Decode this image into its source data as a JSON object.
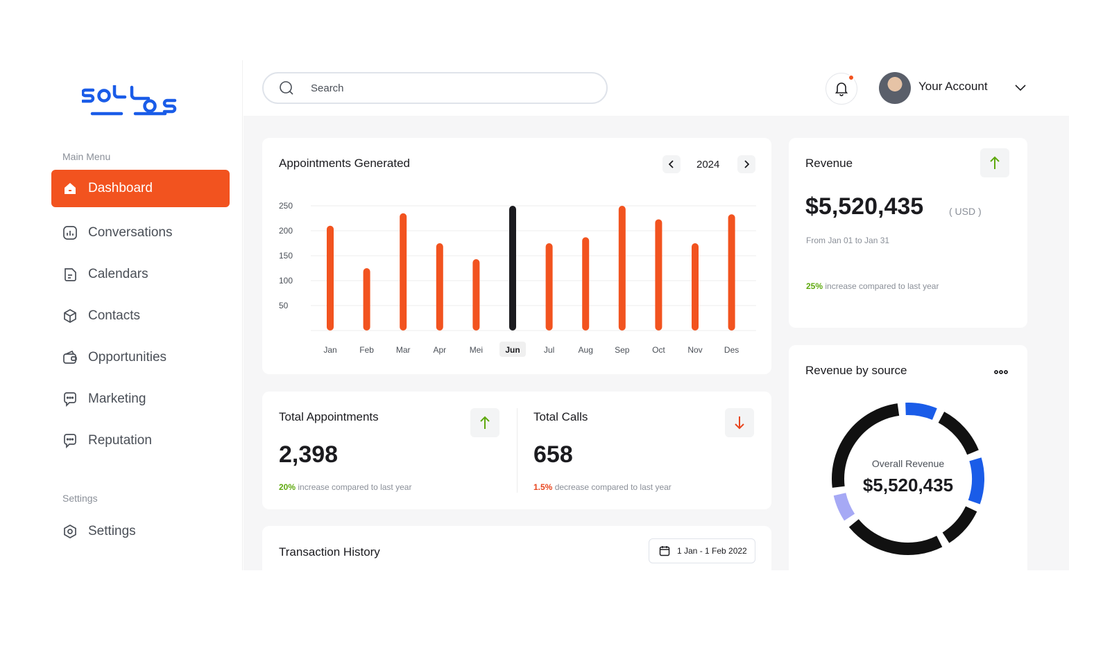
{
  "brand": {
    "logo_text": "solos",
    "color": "#1a5ce8"
  },
  "sidebar": {
    "main_menu_label": "Main Menu",
    "items": [
      {
        "label": "Dashboard",
        "icon": "home-icon",
        "active": true
      },
      {
        "label": "Conversations",
        "icon": "chart-icon"
      },
      {
        "label": "Calendars",
        "icon": "document-icon"
      },
      {
        "label": "Contacts",
        "icon": "box-icon"
      },
      {
        "label": "Opportunities",
        "icon": "wallet-icon"
      },
      {
        "label": "Marketing",
        "icon": "chat-icon"
      },
      {
        "label": "Reputation",
        "icon": "chat-icon"
      }
    ],
    "settings_label": "Settings",
    "settings_item": {
      "label": "Settings",
      "icon": "settings-icon"
    }
  },
  "header": {
    "search_placeholder": "Search",
    "account_label": "Your Account"
  },
  "appointments": {
    "title": "Appointments Generated",
    "year": "2024",
    "chart_data": {
      "type": "bar",
      "categories": [
        "Jan",
        "Feb",
        "Mar",
        "Apr",
        "Mei",
        "Jun",
        "Jul",
        "Aug",
        "Sep",
        "Oct",
        "Nov",
        "Des"
      ],
      "values": [
        210,
        125,
        235,
        175,
        143,
        250,
        175,
        187,
        250,
        223,
        175,
        233
      ],
      "highlighted": "Jun",
      "yticks": [
        50,
        100,
        150,
        200,
        250
      ],
      "ylim": [
        0,
        250
      ],
      "colors": {
        "bar": "#f2531f",
        "highlight": "#1b1b1f"
      }
    }
  },
  "revenue": {
    "title": "Revenue",
    "amount": "$5,520,435",
    "currency": "( USD )",
    "period": "From Jan 01  to Jan 31",
    "change_pct": "25%",
    "change_text": " increase compared to last year"
  },
  "total_appointments": {
    "title": "Total Appointments",
    "value": "2,398",
    "change_pct": "20%",
    "change_text": " increase compared to last year"
  },
  "total_calls": {
    "title": "Total Calls",
    "value": "658",
    "change_pct": "1.5%",
    "change_text": " decrease compared to last year"
  },
  "transactions": {
    "title": "Transaction History",
    "date_range": "1 Jan - 1 Feb 2022"
  },
  "revenue_source": {
    "title": "Revenue by source",
    "center_label": "Overall Revenue",
    "center_value": "$5,520,435",
    "chart_data": {
      "type": "pie",
      "segments": [
        {
          "value": 8,
          "color": "#1a5ce8"
        },
        {
          "value": 12,
          "color": "#111111"
        },
        {
          "value": 11,
          "color": "#1a5ce8"
        },
        {
          "value": 10,
          "color": "#111111"
        },
        {
          "value": 22,
          "color": "#111111"
        },
        {
          "value": 7,
          "color": "#a6a9f5"
        },
        {
          "value": 25,
          "color": "#111111"
        }
      ]
    }
  },
  "colors": {
    "accent": "#f2531f",
    "brand": "#1a5ce8",
    "positive": "#5fa90f",
    "negative": "#e8451e"
  }
}
